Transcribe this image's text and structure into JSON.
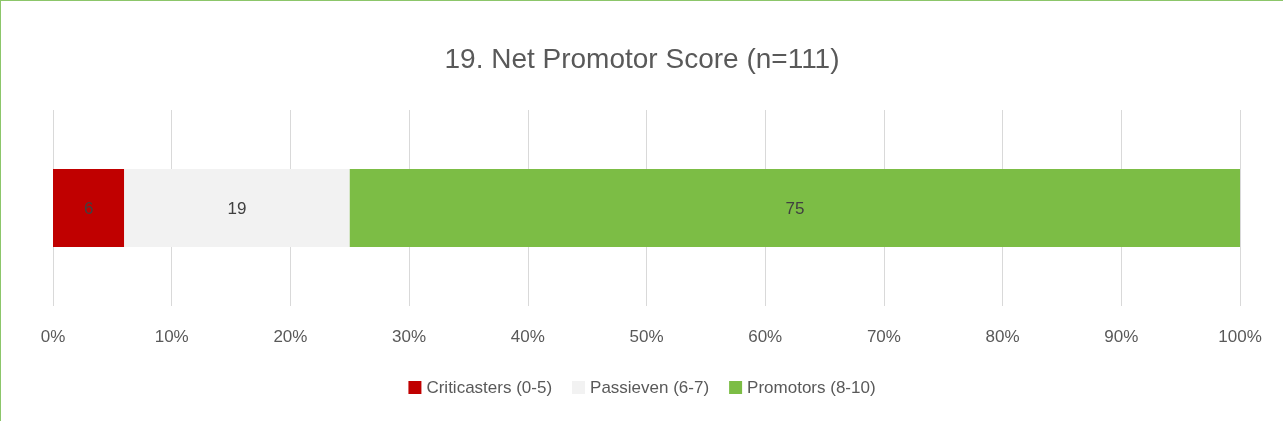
{
  "chart_data": {
    "type": "bar",
    "title": "19. Net Promotor Score (n=111)",
    "orientation": "horizontal",
    "stacked": true,
    "categories": [
      null
    ],
    "series": [
      {
        "name": "Criticasters (0-5)",
        "color": "#c00000",
        "values": [
          6
        ]
      },
      {
        "name": "Passieven (6-7)",
        "color": "#f2f2f2",
        "values": [
          19
        ]
      },
      {
        "name": "Promotors (8-10)",
        "color": "#7cbd45",
        "values": [
          75
        ]
      }
    ],
    "xlim": [
      0,
      100
    ],
    "xticks": [
      {
        "value": 0,
        "label": "0%"
      },
      {
        "value": 10,
        "label": "10%"
      },
      {
        "value": 20,
        "label": "20%"
      },
      {
        "value": 30,
        "label": "30%"
      },
      {
        "value": 40,
        "label": "40%"
      },
      {
        "value": 50,
        "label": "50%"
      },
      {
        "value": 60,
        "label": "60%"
      },
      {
        "value": 70,
        "label": "70%"
      },
      {
        "value": 80,
        "label": "80%"
      },
      {
        "value": 90,
        "label": "90%"
      },
      {
        "value": 100,
        "label": "100%"
      }
    ],
    "grid": "x",
    "legend": "bottom",
    "data_labels": true
  }
}
